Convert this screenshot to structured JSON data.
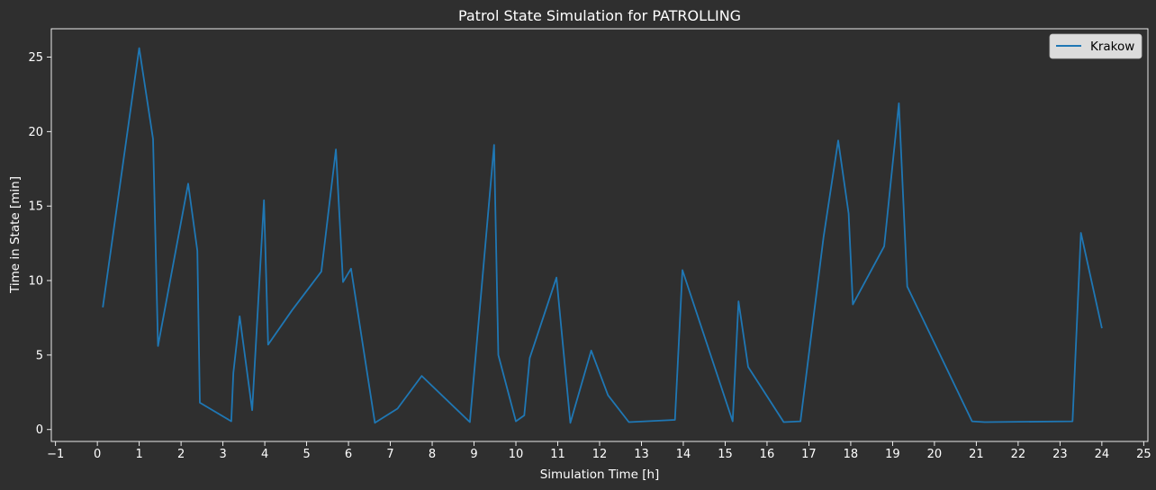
{
  "chart_data": {
    "type": "line",
    "title": "Patrol State Simulation for PATROLLING",
    "xlabel": "Simulation Time [h]",
    "ylabel": "Time in State [min]",
    "xlim": [
      -1.1,
      25.1
    ],
    "ylim": [
      -0.8,
      26.9
    ],
    "xticks": [
      -1,
      0,
      1,
      2,
      3,
      4,
      5,
      6,
      7,
      8,
      9,
      10,
      11,
      12,
      13,
      14,
      15,
      16,
      17,
      18,
      19,
      20,
      21,
      22,
      23,
      24,
      25
    ],
    "yticks": [
      0,
      5,
      10,
      15,
      20,
      25
    ],
    "grid": false,
    "legend": "top-right",
    "series": [
      {
        "name": "Krakow",
        "color": "#1f77b4",
        "x": [
          0.13,
          1.0,
          1.33,
          1.45,
          2.17,
          2.39,
          2.45,
          3.2,
          3.25,
          3.4,
          3.7,
          3.98,
          4.08,
          4.65,
          5.35,
          5.7,
          5.87,
          6.06,
          6.63,
          7.17,
          7.75,
          8.9,
          9.48,
          9.58,
          10.0,
          10.2,
          10.33,
          10.97,
          11.3,
          11.8,
          12.2,
          12.7,
          13.8,
          13.98,
          15.18,
          15.32,
          15.55,
          16.4,
          16.8,
          17.35,
          17.7,
          17.95,
          18.05,
          18.8,
          19.15,
          19.35,
          20.9,
          21.2,
          23.3,
          23.5,
          24.0
        ],
        "y": [
          8.2,
          25.6,
          19.5,
          5.6,
          16.5,
          12.0,
          1.8,
          0.55,
          3.8,
          7.6,
          1.3,
          15.4,
          5.7,
          8.0,
          10.6,
          18.8,
          9.9,
          10.8,
          0.45,
          1.4,
          3.6,
          0.5,
          19.1,
          5.0,
          0.55,
          0.95,
          4.8,
          10.2,
          0.45,
          5.3,
          2.3,
          0.5,
          0.65,
          10.7,
          0.55,
          8.6,
          4.2,
          0.5,
          0.55,
          12.9,
          19.4,
          14.5,
          8.4,
          12.3,
          21.9,
          9.6,
          0.55,
          0.5,
          0.55,
          13.2,
          6.8
        ]
      }
    ]
  }
}
